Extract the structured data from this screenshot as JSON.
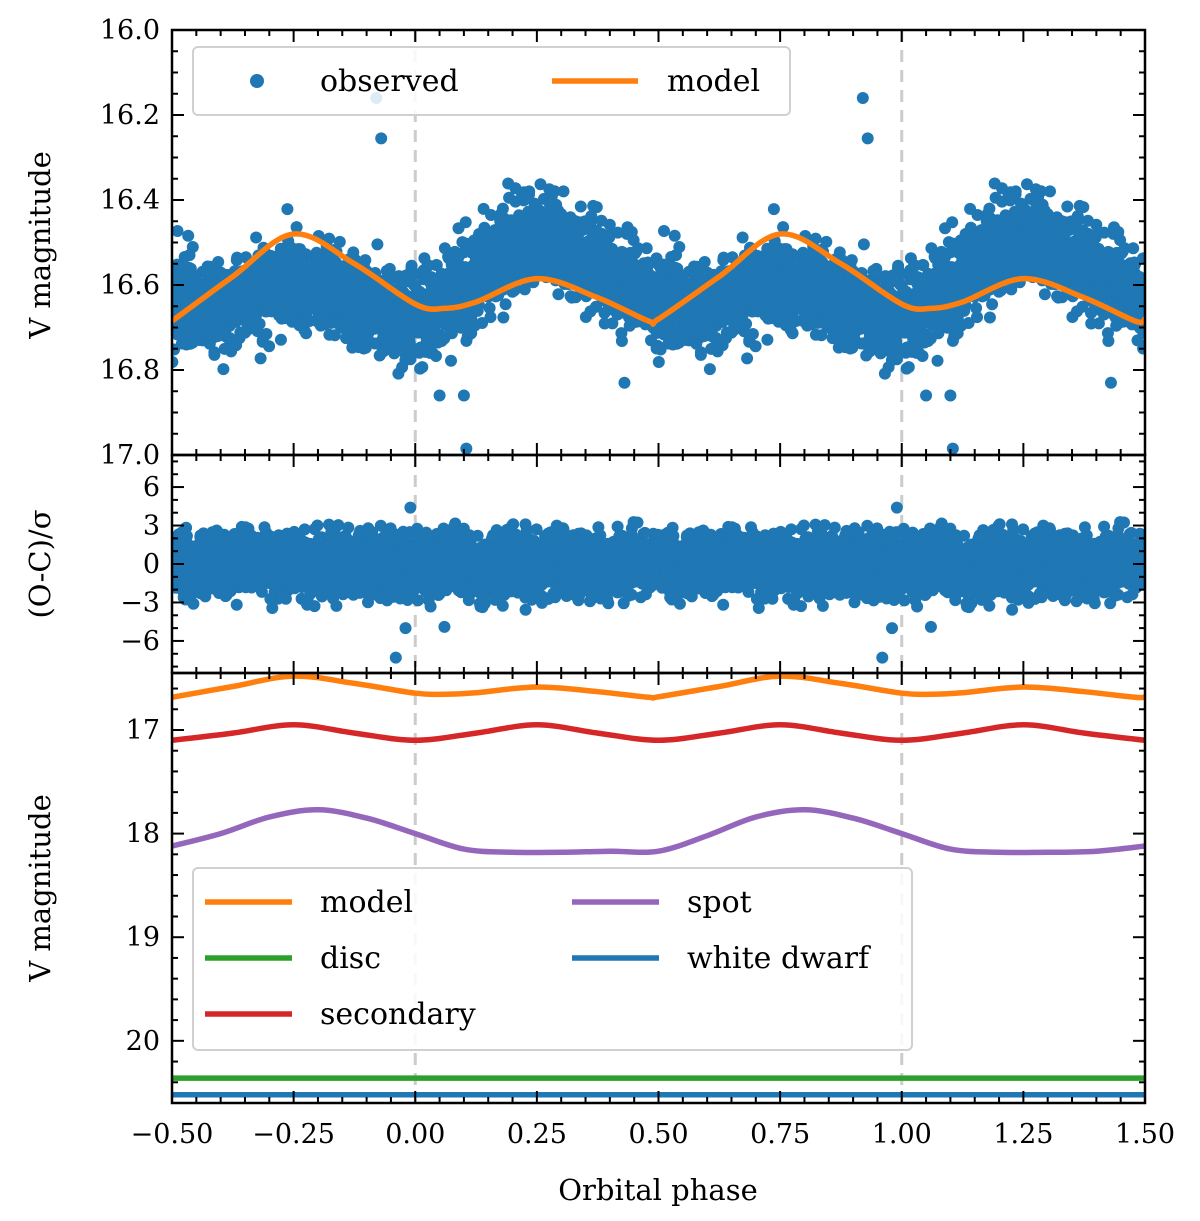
{
  "chart_data": [
    {
      "type": "scatter",
      "panel": "light-curve",
      "title": "",
      "xlabel": "Orbital phase",
      "ylabel": "V magnitude",
      "xlim": [
        -0.5,
        1.5
      ],
      "ylim": [
        17.0,
        16.0
      ],
      "y_inverted": true,
      "xticks": [
        -0.5,
        -0.25,
        0.0,
        0.25,
        0.5,
        0.75,
        1.0,
        1.25,
        1.5
      ],
      "xtick_labels": [
        "−0.50",
        "−0.25",
        "0.00",
        "0.25",
        "0.50",
        "0.75",
        "1.00",
        "1.25",
        "1.50"
      ],
      "yticks": [
        16.0,
        16.2,
        16.4,
        16.6,
        16.8,
        17.0
      ],
      "ytick_labels": [
        "16.0",
        "16.2",
        "16.4",
        "16.6",
        "16.8",
        "17.0"
      ],
      "vlines": [
        0.0,
        1.0
      ],
      "legend": {
        "position": "top-left",
        "entries": [
          "observed",
          "model"
        ]
      },
      "series": [
        {
          "name": "observed",
          "kind": "scatter",
          "color": "#1f77b4",
          "description_points": "dense cloud following model with scatter about 0.08 mag"
        },
        {
          "name": "model",
          "kind": "line",
          "color": "#ff7f0e",
          "x": [
            -0.5,
            -0.375,
            -0.25,
            -0.125,
            0.0,
            0.06,
            0.125,
            0.25,
            0.375,
            0.48,
            0.5,
            0.625,
            0.75,
            0.875,
            1.0,
            1.06,
            1.125,
            1.25,
            1.375,
            1.48,
            1.5
          ],
          "y": [
            16.685,
            16.58,
            16.48,
            16.55,
            16.645,
            16.655,
            16.64,
            16.585,
            16.63,
            16.685,
            16.68,
            16.58,
            16.48,
            16.55,
            16.645,
            16.655,
            16.64,
            16.585,
            16.63,
            16.685,
            16.68
          ]
        }
      ],
      "outliers": [
        {
          "x": -0.08,
          "y": 16.16
        },
        {
          "x": -0.07,
          "y": 16.255
        },
        {
          "x": 0.92,
          "y": 16.16
        },
        {
          "x": 0.93,
          "y": 16.255
        },
        {
          "x": 0.105,
          "y": 16.985
        },
        {
          "x": 1.105,
          "y": 16.985
        },
        {
          "x": 0.05,
          "y": 16.86
        },
        {
          "x": 0.1,
          "y": 16.86
        },
        {
          "x": 1.05,
          "y": 16.86
        },
        {
          "x": 1.1,
          "y": 16.86
        },
        {
          "x": 0.43,
          "y": 16.83
        },
        {
          "x": 1.43,
          "y": 16.83
        }
      ]
    },
    {
      "type": "scatter",
      "panel": "residuals",
      "xlabel": "",
      "ylabel": "(O-C)/σ",
      "xlim": [
        -0.5,
        1.5
      ],
      "ylim": [
        -8.5,
        8.5
      ],
      "yticks": [
        -6,
        -3,
        0,
        3,
        6
      ],
      "ytick_labels": [
        "−6",
        "−3",
        "0",
        "3",
        "6"
      ],
      "vlines": [
        0.0,
        1.0
      ],
      "series": [
        {
          "name": "residuals",
          "kind": "scatter",
          "color": "#1f77b4",
          "description_points": "residuals scattered about zero, mostly within ±3 sigma"
        }
      ],
      "outliers": [
        {
          "x": -0.01,
          "y": 4.4
        },
        {
          "x": 0.99,
          "y": 4.4
        },
        {
          "x": -0.02,
          "y": -5.0
        },
        {
          "x": 0.98,
          "y": -5.0
        },
        {
          "x": -0.04,
          "y": -7.3
        },
        {
          "x": 0.96,
          "y": -7.3
        },
        {
          "x": 0.06,
          "y": -4.9
        },
        {
          "x": 1.06,
          "y": -4.9
        }
      ]
    },
    {
      "type": "line",
      "panel": "components",
      "xlabel": "Orbital phase",
      "ylabel": "V magnitude",
      "xlim": [
        -0.5,
        1.5
      ],
      "ylim": [
        20.6,
        16.45
      ],
      "y_inverted": true,
      "yticks": [
        17,
        18,
        19,
        20
      ],
      "ytick_labels": [
        "17",
        "18",
        "19",
        "20"
      ],
      "vlines": [
        0.0,
        1.0
      ],
      "legend": {
        "position": "lower-left",
        "columns": 2,
        "entries": [
          "model",
          "disc",
          "secondary",
          "spot",
          "white dwarf"
        ]
      },
      "series": [
        {
          "name": "model",
          "color": "#ff7f0e",
          "x": [
            -0.5,
            -0.375,
            -0.25,
            -0.125,
            0.0,
            0.06,
            0.125,
            0.25,
            0.375,
            0.48,
            0.5,
            0.625,
            0.75,
            0.875,
            1.0,
            1.06,
            1.125,
            1.25,
            1.375,
            1.48,
            1.5
          ],
          "y": [
            16.685,
            16.58,
            16.48,
            16.55,
            16.645,
            16.655,
            16.64,
            16.585,
            16.63,
            16.685,
            16.68,
            16.58,
            16.48,
            16.55,
            16.645,
            16.655,
            16.64,
            16.585,
            16.63,
            16.685,
            16.68
          ]
        },
        {
          "name": "disc",
          "color": "#2ca02c",
          "x": [
            -0.5,
            1.5
          ],
          "y": [
            20.36,
            20.36
          ]
        },
        {
          "name": "secondary",
          "color": "#d62728",
          "x": [
            -0.5,
            -0.375,
            -0.25,
            -0.125,
            0.0,
            0.125,
            0.25,
            0.375,
            0.5,
            0.625,
            0.75,
            0.875,
            1.0,
            1.125,
            1.25,
            1.375,
            1.5
          ],
          "y": [
            17.1,
            17.03,
            16.95,
            17.03,
            17.1,
            17.03,
            16.95,
            17.03,
            17.1,
            17.03,
            16.95,
            17.03,
            17.1,
            17.03,
            16.95,
            17.03,
            17.1
          ]
        },
        {
          "name": "spot",
          "color": "#9467bd",
          "x": [
            -0.5,
            -0.4,
            -0.3,
            -0.2,
            -0.1,
            0.0,
            0.1,
            0.2,
            0.3,
            0.4,
            0.5,
            0.6,
            0.7,
            0.8,
            0.9,
            1.0,
            1.1,
            1.2,
            1.3,
            1.4,
            1.5
          ],
          "y": [
            18.12,
            18.0,
            17.84,
            17.77,
            17.85,
            18.0,
            18.15,
            18.18,
            18.18,
            18.17,
            18.17,
            18.02,
            17.84,
            17.77,
            17.85,
            18.0,
            18.15,
            18.18,
            18.18,
            18.17,
            18.12
          ]
        },
        {
          "name": "white dwarf",
          "color": "#1f77b4",
          "x": [
            -0.5,
            1.5
          ],
          "y": [
            20.52,
            20.52
          ]
        }
      ]
    }
  ]
}
